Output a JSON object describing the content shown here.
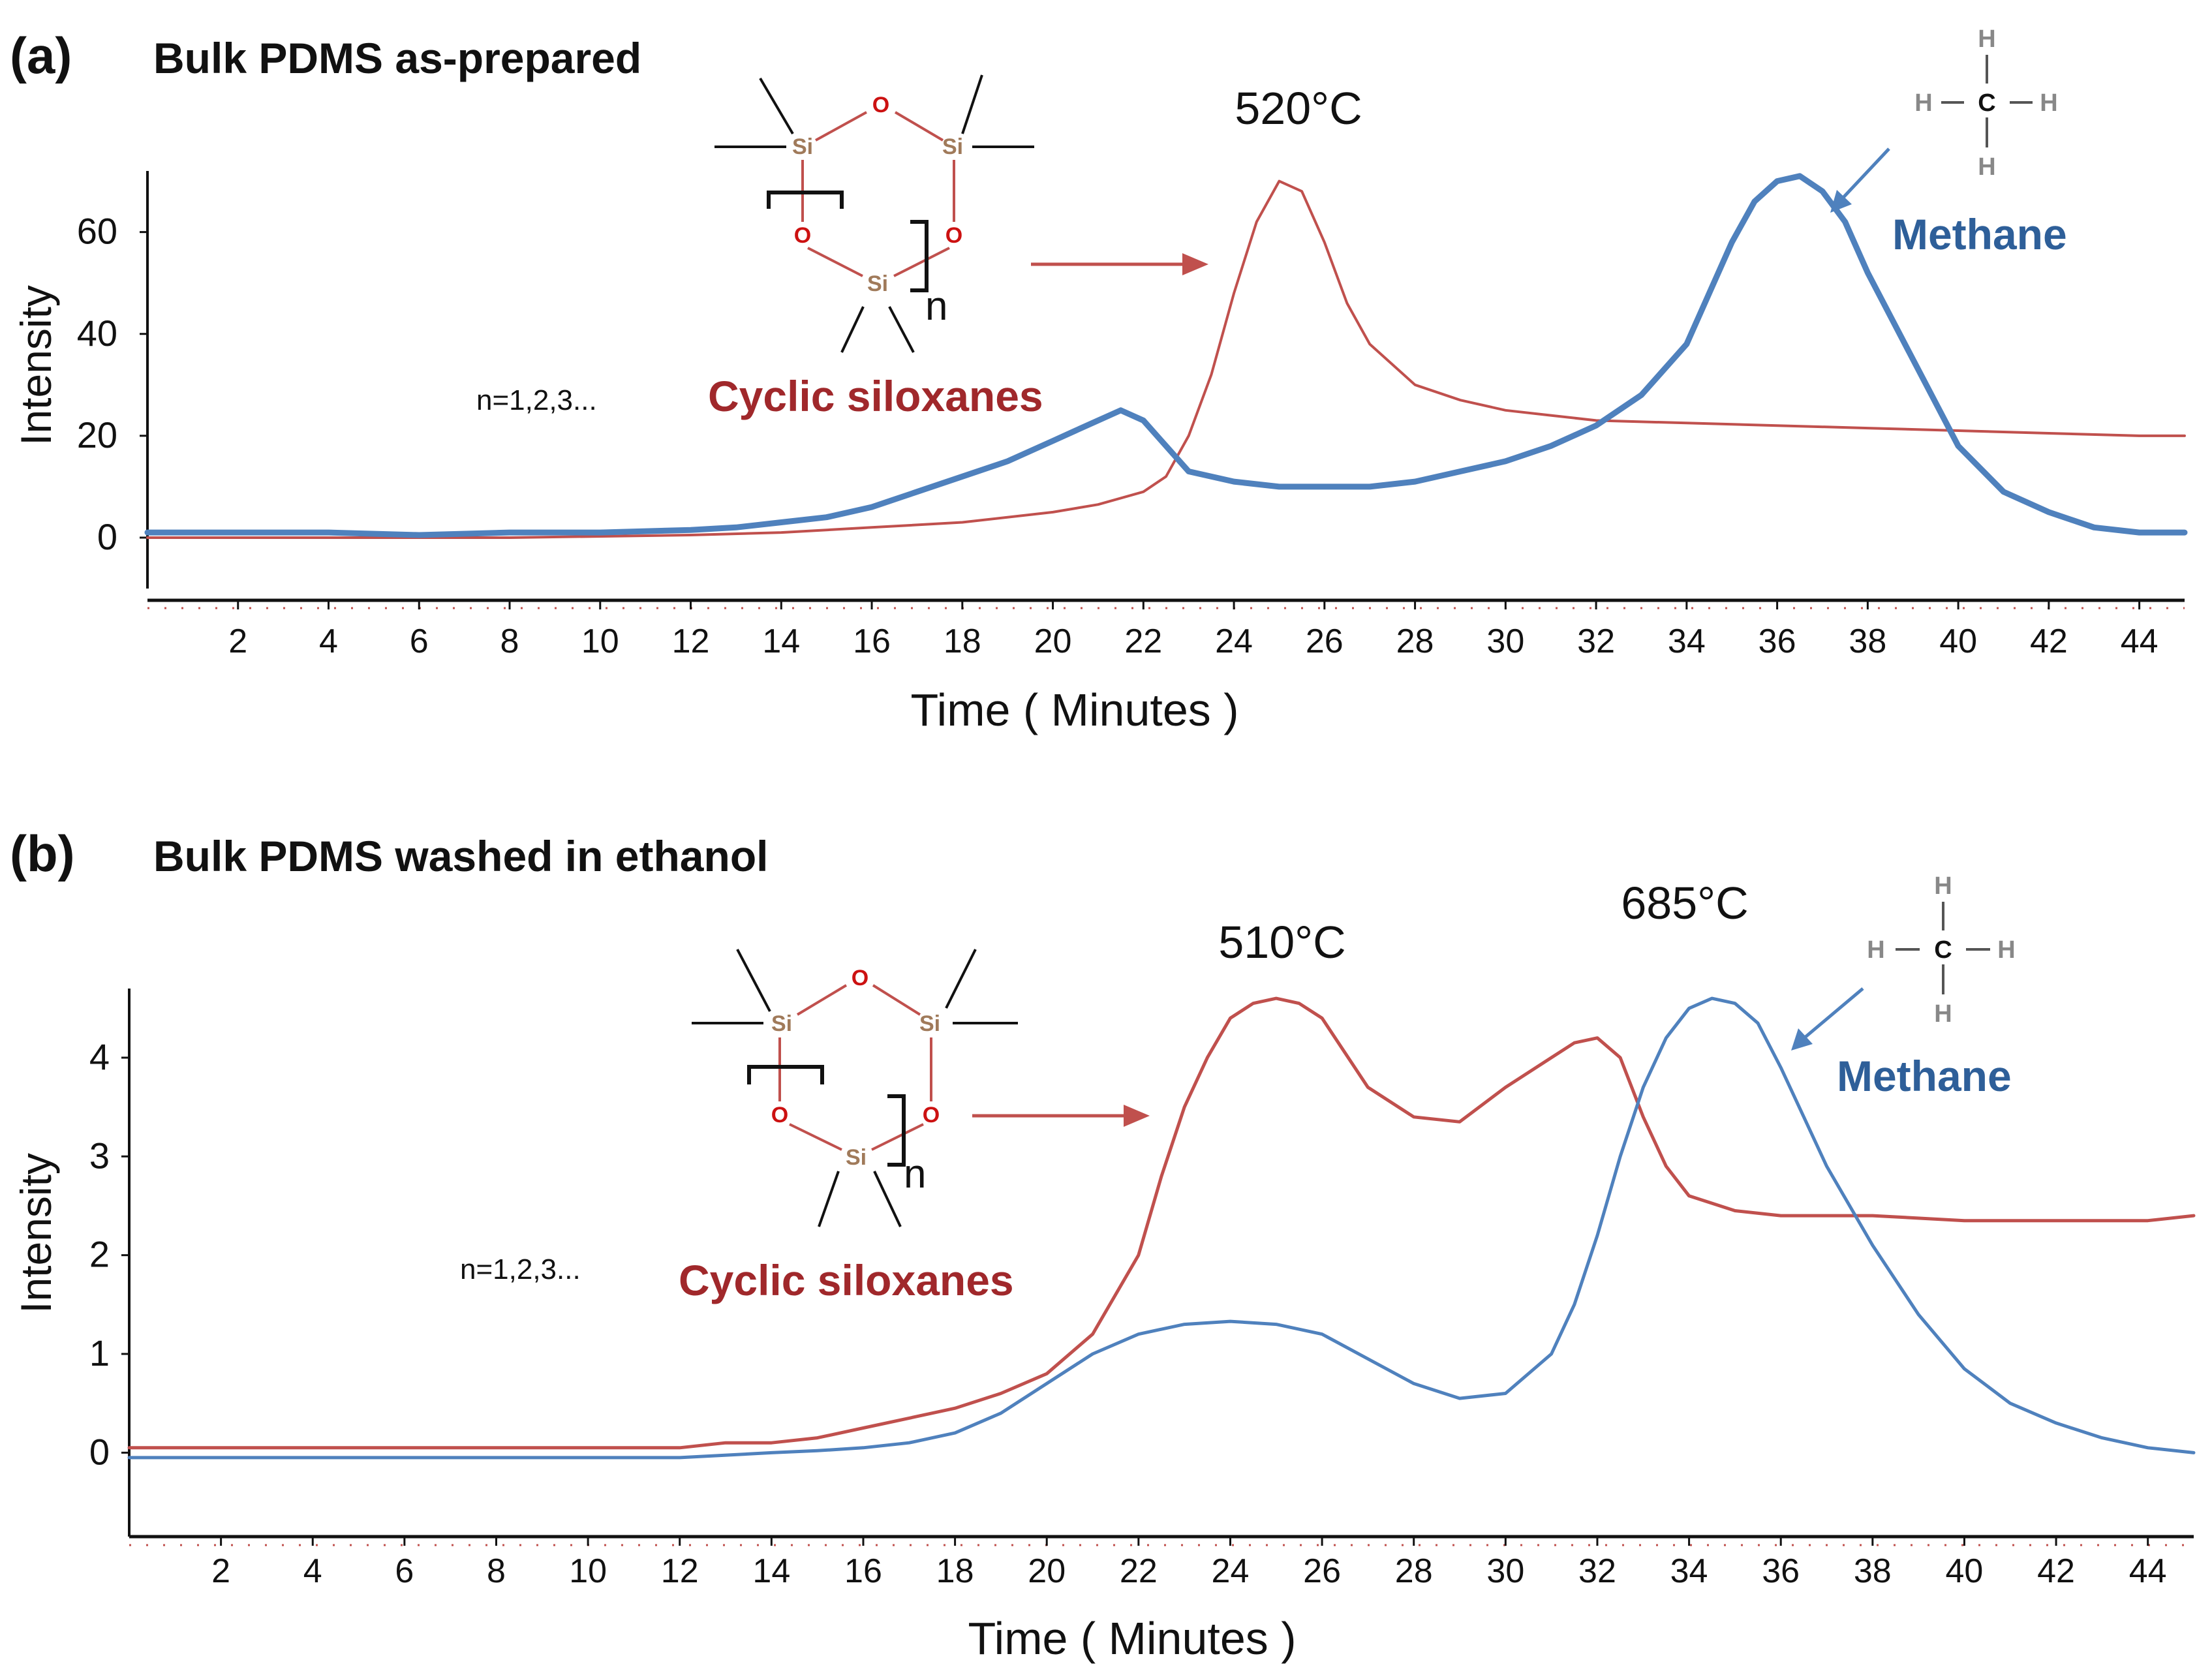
{
  "chart_data": [
    {
      "type": "line",
      "panel_label": "(a)",
      "title": "Bulk PDMS as-prepared",
      "xlabel": "Time ( Minutes )",
      "ylabel": "Intensity",
      "xlim": [
        0,
        45
      ],
      "ylim": [
        -10,
        72
      ],
      "x_ticks": [
        "2",
        "4",
        "6",
        "8",
        "10",
        "12",
        "14",
        "16",
        "18",
        "20",
        "22",
        "24",
        "26",
        "28",
        "30",
        "32",
        "34",
        "36",
        "38",
        "40",
        "42",
        "44"
      ],
      "y_ticks": [
        "0",
        "20",
        "40",
        "60"
      ],
      "series": [
        {
          "name": "Cyclic siloxanes",
          "color": "#c0504d",
          "x": [
            0,
            4,
            8,
            12,
            14,
            16,
            18,
            20,
            21,
            22,
            22.5,
            23,
            23.5,
            24,
            24.5,
            25,
            25.5,
            26,
            26.5,
            27,
            28,
            29,
            30,
            31,
            32,
            34,
            36,
            38,
            40,
            42,
            44,
            45
          ],
          "y": [
            0,
            0,
            0,
            0.5,
            1,
            2,
            3,
            5,
            6.5,
            9,
            12,
            20,
            32,
            48,
            62,
            70,
            68,
            58,
            46,
            38,
            30,
            27,
            25,
            24,
            23,
            22.5,
            22,
            21.5,
            21,
            20.5,
            20,
            20
          ]
        },
        {
          "name": "Methane",
          "color": "#4f81bd",
          "x": [
            0,
            2,
            4,
            6,
            8,
            10,
            12,
            13,
            14,
            15,
            16,
            17,
            18,
            19,
            20,
            20.5,
            21,
            21.5,
            22,
            22.5,
            23,
            24,
            25,
            26,
            27,
            28,
            29,
            30,
            31,
            32,
            33,
            34,
            34.5,
            35,
            35.5,
            36,
            36.5,
            37,
            37.5,
            38,
            39,
            40,
            41,
            42,
            43,
            44,
            45
          ],
          "y": [
            1,
            1,
            1,
            0.5,
            1,
            1,
            1.5,
            2,
            3,
            4,
            6,
            9,
            12,
            15,
            19,
            21,
            23,
            25,
            23,
            18,
            13,
            11,
            10,
            10,
            10,
            11,
            13,
            15,
            18,
            22,
            28,
            38,
            48,
            58,
            66,
            70,
            71,
            68,
            62,
            52,
            35,
            18,
            9,
            5,
            2,
            1,
            1
          ]
        }
      ],
      "annotations": {
        "peak_label": "520°C",
        "siloxane_label": "Cyclic siloxanes",
        "methane_label": "Methane",
        "n_label": "n=1,2,3...",
        "n_subscript": "n"
      }
    },
    {
      "type": "line",
      "panel_label": "(b)",
      "title": "Bulk PDMS washed in ethanol",
      "xlabel": "Time ( Minutes )",
      "ylabel": "Intensity",
      "xlim": [
        0,
        45
      ],
      "ylim": [
        -0.85,
        4.7
      ],
      "x_ticks": [
        "2",
        "4",
        "6",
        "8",
        "10",
        "12",
        "14",
        "16",
        "18",
        "20",
        "22",
        "24",
        "26",
        "28",
        "30",
        "32",
        "34",
        "36",
        "38",
        "40",
        "42",
        "44"
      ],
      "y_ticks": [
        "0",
        "1",
        "2",
        "3",
        "4"
      ],
      "series": [
        {
          "name": "Cyclic siloxanes",
          "color": "#c0504d",
          "x": [
            0,
            2,
            4,
            6,
            8,
            10,
            12,
            13,
            14,
            15,
            16,
            17,
            18,
            19,
            20,
            21,
            22,
            22.5,
            23,
            23.5,
            24,
            24.5,
            25,
            25.5,
            26,
            27,
            28,
            29,
            30,
            31,
            31.5,
            32,
            32.5,
            33,
            33.5,
            34,
            35,
            36,
            38,
            40,
            42,
            44,
            45
          ],
          "y": [
            0.05,
            0.05,
            0.05,
            0.05,
            0.05,
            0.05,
            0.05,
            0.1,
            0.1,
            0.15,
            0.25,
            0.35,
            0.45,
            0.6,
            0.8,
            1.2,
            2.0,
            2.8,
            3.5,
            4.0,
            4.4,
            4.55,
            4.6,
            4.55,
            4.4,
            3.7,
            3.4,
            3.35,
            3.7,
            4.0,
            4.15,
            4.2,
            4.0,
            3.4,
            2.9,
            2.6,
            2.45,
            2.4,
            2.4,
            2.35,
            2.35,
            2.35,
            2.4
          ]
        },
        {
          "name": "Methane",
          "color": "#4f81bd",
          "x": [
            0,
            4,
            8,
            12,
            14,
            15,
            16,
            17,
            18,
            19,
            20,
            21,
            22,
            23,
            24,
            25,
            26,
            27,
            28,
            29,
            30,
            31,
            31.5,
            32,
            32.5,
            33,
            33.5,
            34,
            34.5,
            35,
            35.5,
            36,
            36.5,
            37,
            38,
            39,
            40,
            41,
            42,
            43,
            44,
            45
          ],
          "y": [
            -0.05,
            -0.05,
            -0.05,
            -0.05,
            0,
            0.02,
            0.05,
            0.1,
            0.2,
            0.4,
            0.7,
            1.0,
            1.2,
            1.3,
            1.33,
            1.3,
            1.2,
            0.95,
            0.7,
            0.55,
            0.6,
            1.0,
            1.5,
            2.2,
            3.0,
            3.7,
            4.2,
            4.5,
            4.6,
            4.55,
            4.35,
            3.9,
            3.4,
            2.9,
            2.1,
            1.4,
            0.85,
            0.5,
            0.3,
            0.15,
            0.05,
            0.0
          ]
        }
      ],
      "annotations": {
        "peak_label_1": "510°C",
        "peak_label_2": "685°C",
        "siloxane_label": "Cyclic siloxanes",
        "methane_label": "Methane",
        "n_label": "n=1,2,3...",
        "n_subscript": "n"
      }
    }
  ],
  "molecule": {
    "si": "Si",
    "o": "O",
    "c": "C",
    "h": "H"
  },
  "colors": {
    "siloxane": "#c0504d",
    "methane": "#4f81bd",
    "siloxane_text": "#a0282b",
    "methane_text": "#2e5f99",
    "axis": "#111111",
    "tick": "#c0504d"
  }
}
